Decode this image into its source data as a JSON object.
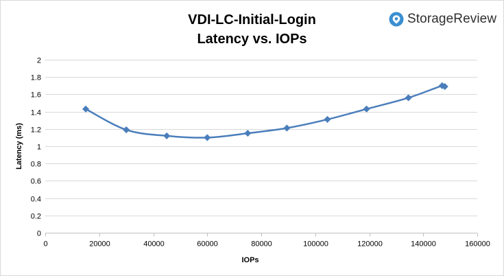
{
  "brand": {
    "name": "StorageReview",
    "icon": "storagereview-logo-icon",
    "color": "#3a8fd1"
  },
  "chart_data": {
    "type": "line",
    "title": "VDI-LC-Initial-Login",
    "subtitle": "Latency vs. IOPs",
    "xlabel": "IOPs",
    "ylabel": "Latency (ms)",
    "xlim": [
      0,
      160000
    ],
    "ylim": [
      0,
      2
    ],
    "xticks": [
      0,
      20000,
      40000,
      60000,
      80000,
      100000,
      120000,
      140000,
      160000
    ],
    "yticks": [
      0,
      0.2,
      0.4,
      0.6,
      0.8,
      1,
      1.2,
      1.4,
      1.6,
      1.8,
      2
    ],
    "grid": "horizontal",
    "legend": "none",
    "series": [
      {
        "color": "#4a7ebb",
        "marker": "diamond",
        "smooth": true,
        "x": [
          15000,
          30000,
          45000,
          60000,
          75000,
          89500,
          104500,
          119000,
          134500,
          147000,
          148000
        ],
        "y": [
          1.43,
          1.19,
          1.12,
          1.1,
          1.15,
          1.21,
          1.31,
          1.43,
          1.56,
          1.7,
          1.69
        ]
      }
    ]
  }
}
